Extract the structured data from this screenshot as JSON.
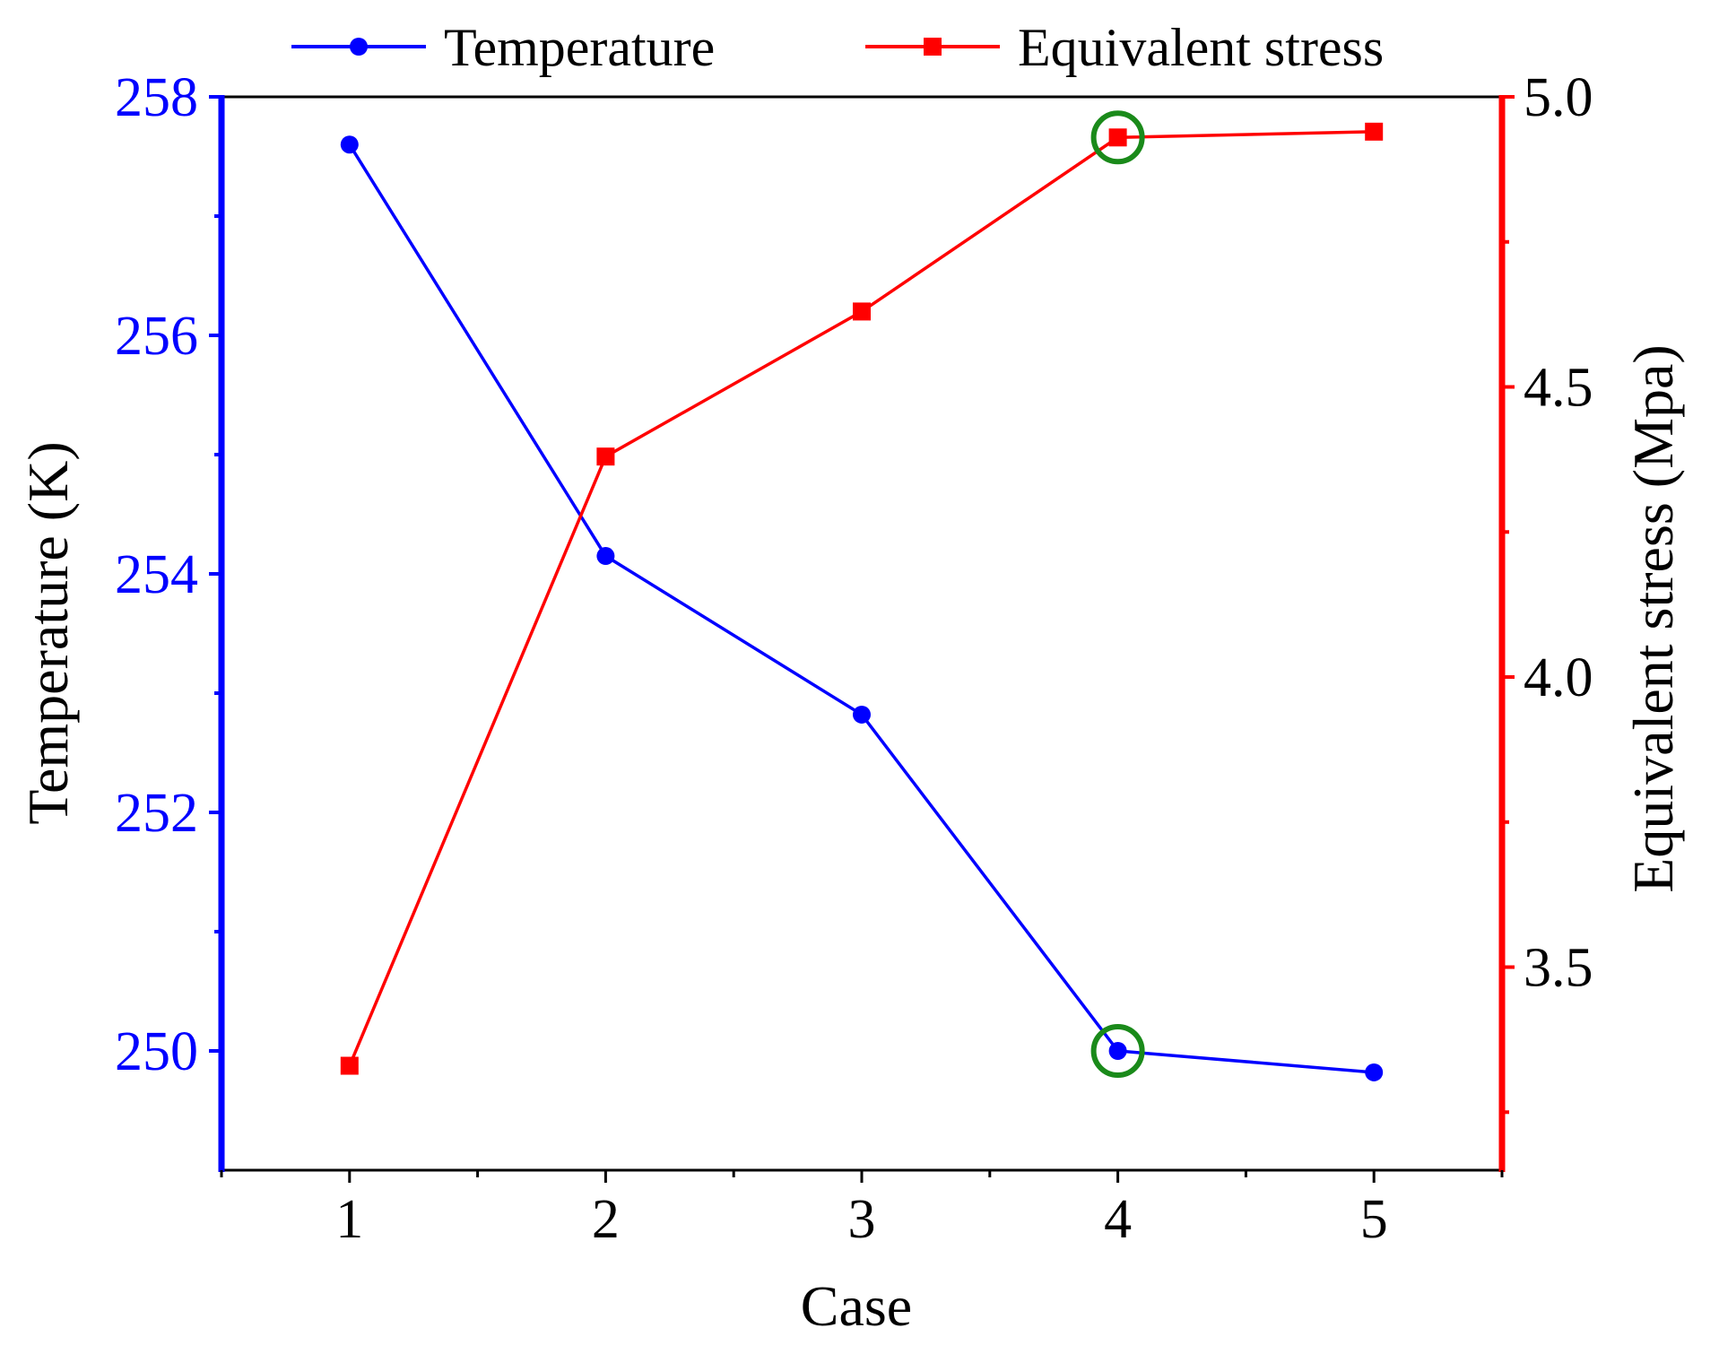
{
  "chart_data": {
    "type": "line",
    "title": "",
    "xlabel": "Case",
    "ylabel_left": "Temperature (K)",
    "ylabel_right": "Equivalent stress (Mpa)",
    "categories": [
      1,
      2,
      3,
      4,
      5
    ],
    "x_tick_labels": [
      "1",
      "2",
      "3",
      "4",
      "5"
    ],
    "xlim": [
      0.5,
      5.5
    ],
    "ylim_left": [
      249,
      258
    ],
    "y_left_ticks": [
      "250",
      "252",
      "254",
      "256",
      "258"
    ],
    "ylim_right": [
      3.15,
      5.0
    ],
    "y_right_ticks": [
      "3.5",
      "4.0",
      "4.5",
      "5.0"
    ],
    "series": [
      {
        "name": "Temperature",
        "axis": "left",
        "marker": "circle",
        "color": "#0000ff",
        "values": [
          257.6,
          254.15,
          252.82,
          250.0,
          249.82
        ]
      },
      {
        "name": "Equivalent stress",
        "axis": "right",
        "marker": "square",
        "color": "#ff0000",
        "values": [
          3.33,
          4.38,
          4.63,
          4.93,
          4.94
        ]
      }
    ],
    "highlights": [
      {
        "series": "Temperature",
        "category": 4,
        "value": 250.0,
        "shape": "circle",
        "color": "#1a8a1a"
      },
      {
        "series": "Equivalent stress",
        "category": 4,
        "value": 4.93,
        "shape": "circle",
        "color": "#1a8a1a"
      }
    ],
    "legend": {
      "placement": "top"
    },
    "grid": false
  },
  "colors": {
    "left_axis": "#0000ff",
    "right_axis": "#ff0000",
    "frame": "#000000",
    "highlight": "#1a8a1a"
  }
}
